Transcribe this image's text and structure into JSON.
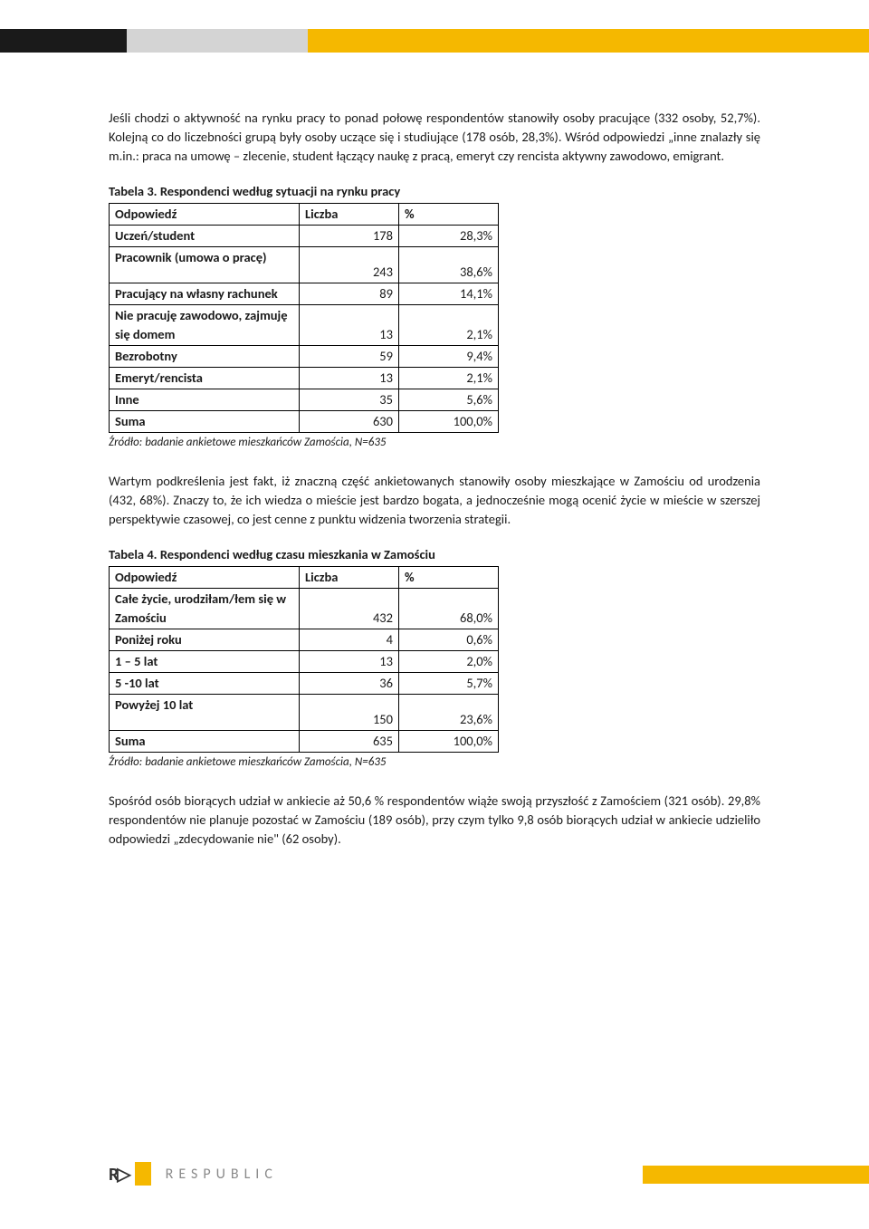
{
  "paragraph1": "Jeśli chodzi o aktywność na rynku pracy to ponad połowę respondentów stanowiły osoby pracujące (332 osoby, 52,7%). Kolejną co do liczebności grupą były osoby uczące się i studiujące (178 osób, 28,3%). Wśród odpowiedzi „inne znalazły się m.in.: praca na umowę – zlecenie, student łączący naukę z pracą, emeryt czy rencista aktywny zawodowo, emigrant.",
  "table3": {
    "title": "Tabela 3. Respondenci według sytuacji na rynku pracy",
    "headers": [
      "Odpowiedź",
      "Liczba",
      "%"
    ],
    "rows": [
      {
        "label": "Uczeń/student",
        "n": "178",
        "pct": "28,3%",
        "tall": false
      },
      {
        "label": "Pracownik (umowa o pracę)",
        "n": "243",
        "pct": "38,6%",
        "tall": true
      },
      {
        "label": "Pracujący na własny rachunek",
        "n": "89",
        "pct": "14,1%",
        "tall": false
      },
      {
        "label": "Nie pracuję zawodowo, zajmuję się domem",
        "n": "13",
        "pct": "2,1%",
        "tall": true
      },
      {
        "label": "Bezrobotny",
        "n": "59",
        "pct": "9,4%",
        "tall": false
      },
      {
        "label": "Emeryt/rencista",
        "n": "13",
        "pct": "2,1%",
        "tall": false
      },
      {
        "label": "Inne",
        "n": "35",
        "pct": "5,6%",
        "tall": false
      },
      {
        "label": "Suma",
        "n": "630",
        "pct": "100,0%",
        "tall": false
      }
    ],
    "source": "Źródło: badanie ankietowe mieszkańców Zamościa, N=635"
  },
  "paragraph2": "Wartym podkreślenia jest fakt, iż znaczną część ankietowanych stanowiły osoby mieszkające w Zamościu od urodzenia (432, 68%). Znaczy to, że ich wiedza o mieście jest bardzo bogata, a jednocześnie mogą ocenić życie w mieście w szerszej perspektywie czasowej, co jest cenne z punktu widzenia tworzenia strategii.",
  "table4": {
    "title": "Tabela 4. Respondenci według czasu mieszkania w Zamościu",
    "headers": [
      "Odpowiedź",
      "Liczba",
      "%"
    ],
    "rows": [
      {
        "label": "Całe życie, urodziłam/łem się w Zamościu",
        "n": "432",
        "pct": "68,0%",
        "tall": true
      },
      {
        "label": "Poniżej roku",
        "n": "4",
        "pct": "0,6%",
        "tall": false
      },
      {
        "label": "1 – 5 lat",
        "n": "13",
        "pct": "2,0%",
        "tall": false
      },
      {
        "label": "5 -10 lat",
        "n": "36",
        "pct": "5,7%",
        "tall": false
      },
      {
        "label": "Powyżej 10 lat",
        "n": "150",
        "pct": "23,6%",
        "tall": true
      },
      {
        "label": "Suma",
        "n": "635",
        "pct": "100,0%",
        "tall": false
      }
    ],
    "source": "Źródło: badanie ankietowe mieszkańców Zamościa, N=635"
  },
  "paragraph3": "Spośród osób biorących udział w ankiecie aż 50,6 % respondentów wiąże swoją przyszłość z Zamościem (321 osób). 29,8% respondentów nie planuje pozostać w Zamościu (189 osób), przy czym tylko 9,8 osób biorących udział w ankiecie udzieliło odpowiedzi „zdecydowanie nie\" (62 osoby).",
  "footer": {
    "brand": "RESPUBLIC"
  }
}
